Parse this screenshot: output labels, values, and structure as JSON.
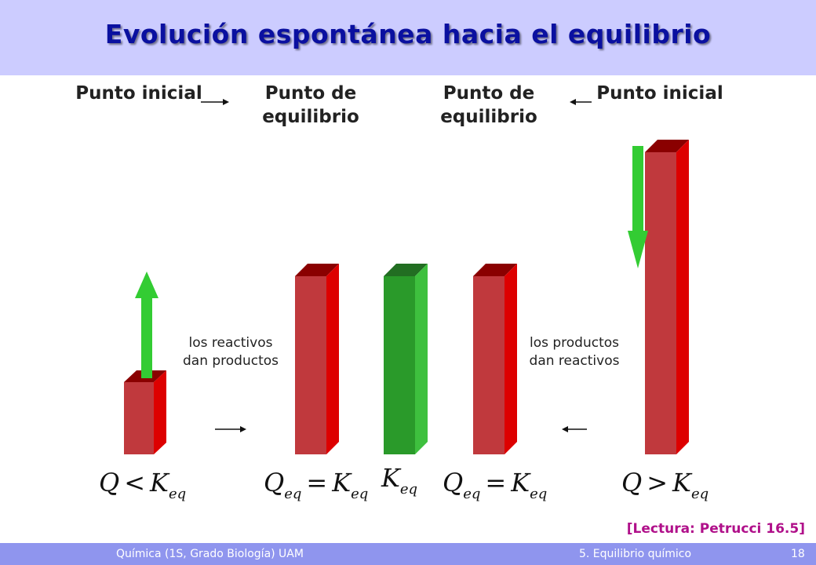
{
  "title": "Evolución espontánea hacia el equilibrio",
  "labels": {
    "left_initial": "Punto inicial",
    "left_equilibrium": "Punto de equilibrio",
    "right_equilibrium": "Punto de equilibrio",
    "right_initial": "Punto inicial"
  },
  "side_text": {
    "left": "los reactivos dan productos",
    "right": "los productos dan reactivos"
  },
  "formulas": {
    "q": "Q",
    "k": "K",
    "eq": "eq",
    "lt": "<",
    "gt": ">",
    "eq_sign": "="
  },
  "colors": {
    "header_bg": "#ccccff",
    "title": "#0a10a0",
    "red_bar": "#c0393d",
    "green_bar": "#2a9a2a",
    "green_arrow": "#33cc33",
    "footer_bg": "#8f95ee",
    "reference": "#b0108a"
  },
  "reference": "[Lectura: Petrucci 16.5]",
  "footer": {
    "course": "Química (1S, Grado Biología) UAM",
    "topic": "5. Equilibrio químico",
    "page": "18"
  }
}
